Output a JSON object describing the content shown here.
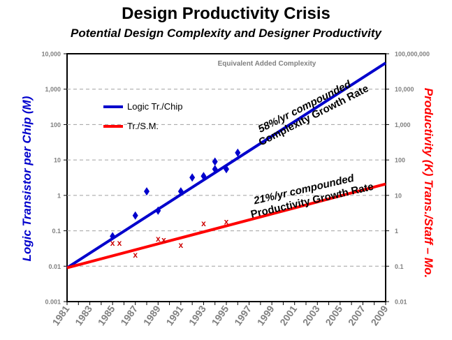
{
  "title": "Design Productivity Crisis",
  "subtitle": "Potential Design Complexity and Designer Productivity",
  "chart_data": {
    "type": "line",
    "title": "Design Productivity Crisis",
    "subtitle": "Potential Design Complexity and Designer Productivity",
    "ylabel": "Logic Transistor per Chip (M)",
    "ylabel_right": "Productivity (K) Trans./Staff – Mo.",
    "y_scale": "log",
    "ylim": [
      0.001,
      10000
    ],
    "y2lim": [
      0.01,
      100000000
    ],
    "xlim": [
      1981,
      2009
    ],
    "x_ticks": [
      "1981",
      "1983",
      "1985",
      "1987",
      "1989",
      "1991",
      "1993",
      "1995",
      "1997",
      "1999",
      "2001",
      "2003",
      "2005",
      "2007",
      "2009"
    ],
    "y_ticks": [
      "0.001",
      "0.01",
      "0.1",
      "1",
      "10",
      "100",
      "1,000",
      "10,000"
    ],
    "y2_ticks": [
      "0.01",
      "0.1",
      "1",
      "10",
      "100",
      "1,000",
      "10,000",
      "100,000,000"
    ],
    "grid": "horizontal dashed",
    "legend_position": "upper-left",
    "top_label": "Equivalent Added Complexity",
    "series": [
      {
        "name": "Logic Tr./Chip",
        "color": "#0000cc",
        "line": [
          [
            1981,
            0.009
          ],
          [
            2009,
            5500
          ]
        ],
        "points": [
          [
            1985,
            0.07
          ],
          [
            1987,
            0.27
          ],
          [
            1988,
            1.3
          ],
          [
            1989,
            0.37
          ],
          [
            1991,
            1.3
          ],
          [
            1992,
            3.2
          ],
          [
            1993,
            3.5
          ],
          [
            1994,
            5.5
          ],
          [
            1994,
            9
          ],
          [
            1995,
            5.5
          ],
          [
            1996,
            16
          ]
        ]
      },
      {
        "name": "Tr./S.M.",
        "color": "#ff0000",
        "line": [
          [
            1981,
            0.009
          ],
          [
            2009,
            2.1
          ]
        ],
        "points": [
          [
            1985,
            0.045
          ],
          [
            1985.6,
            0.045
          ],
          [
            1987,
            0.021
          ],
          [
            1989,
            0.06
          ],
          [
            1989.5,
            0.055
          ],
          [
            1991,
            0.04
          ],
          [
            1993,
            0.16
          ],
          [
            1995,
            0.18
          ]
        ]
      }
    ],
    "annotations": [
      {
        "lines": [
          "58%/yr compounded",
          "Complexity Growth Rate"
        ]
      },
      {
        "lines": [
          "21%/yr compounded",
          "Productivity Growth Rate"
        ]
      }
    ]
  }
}
